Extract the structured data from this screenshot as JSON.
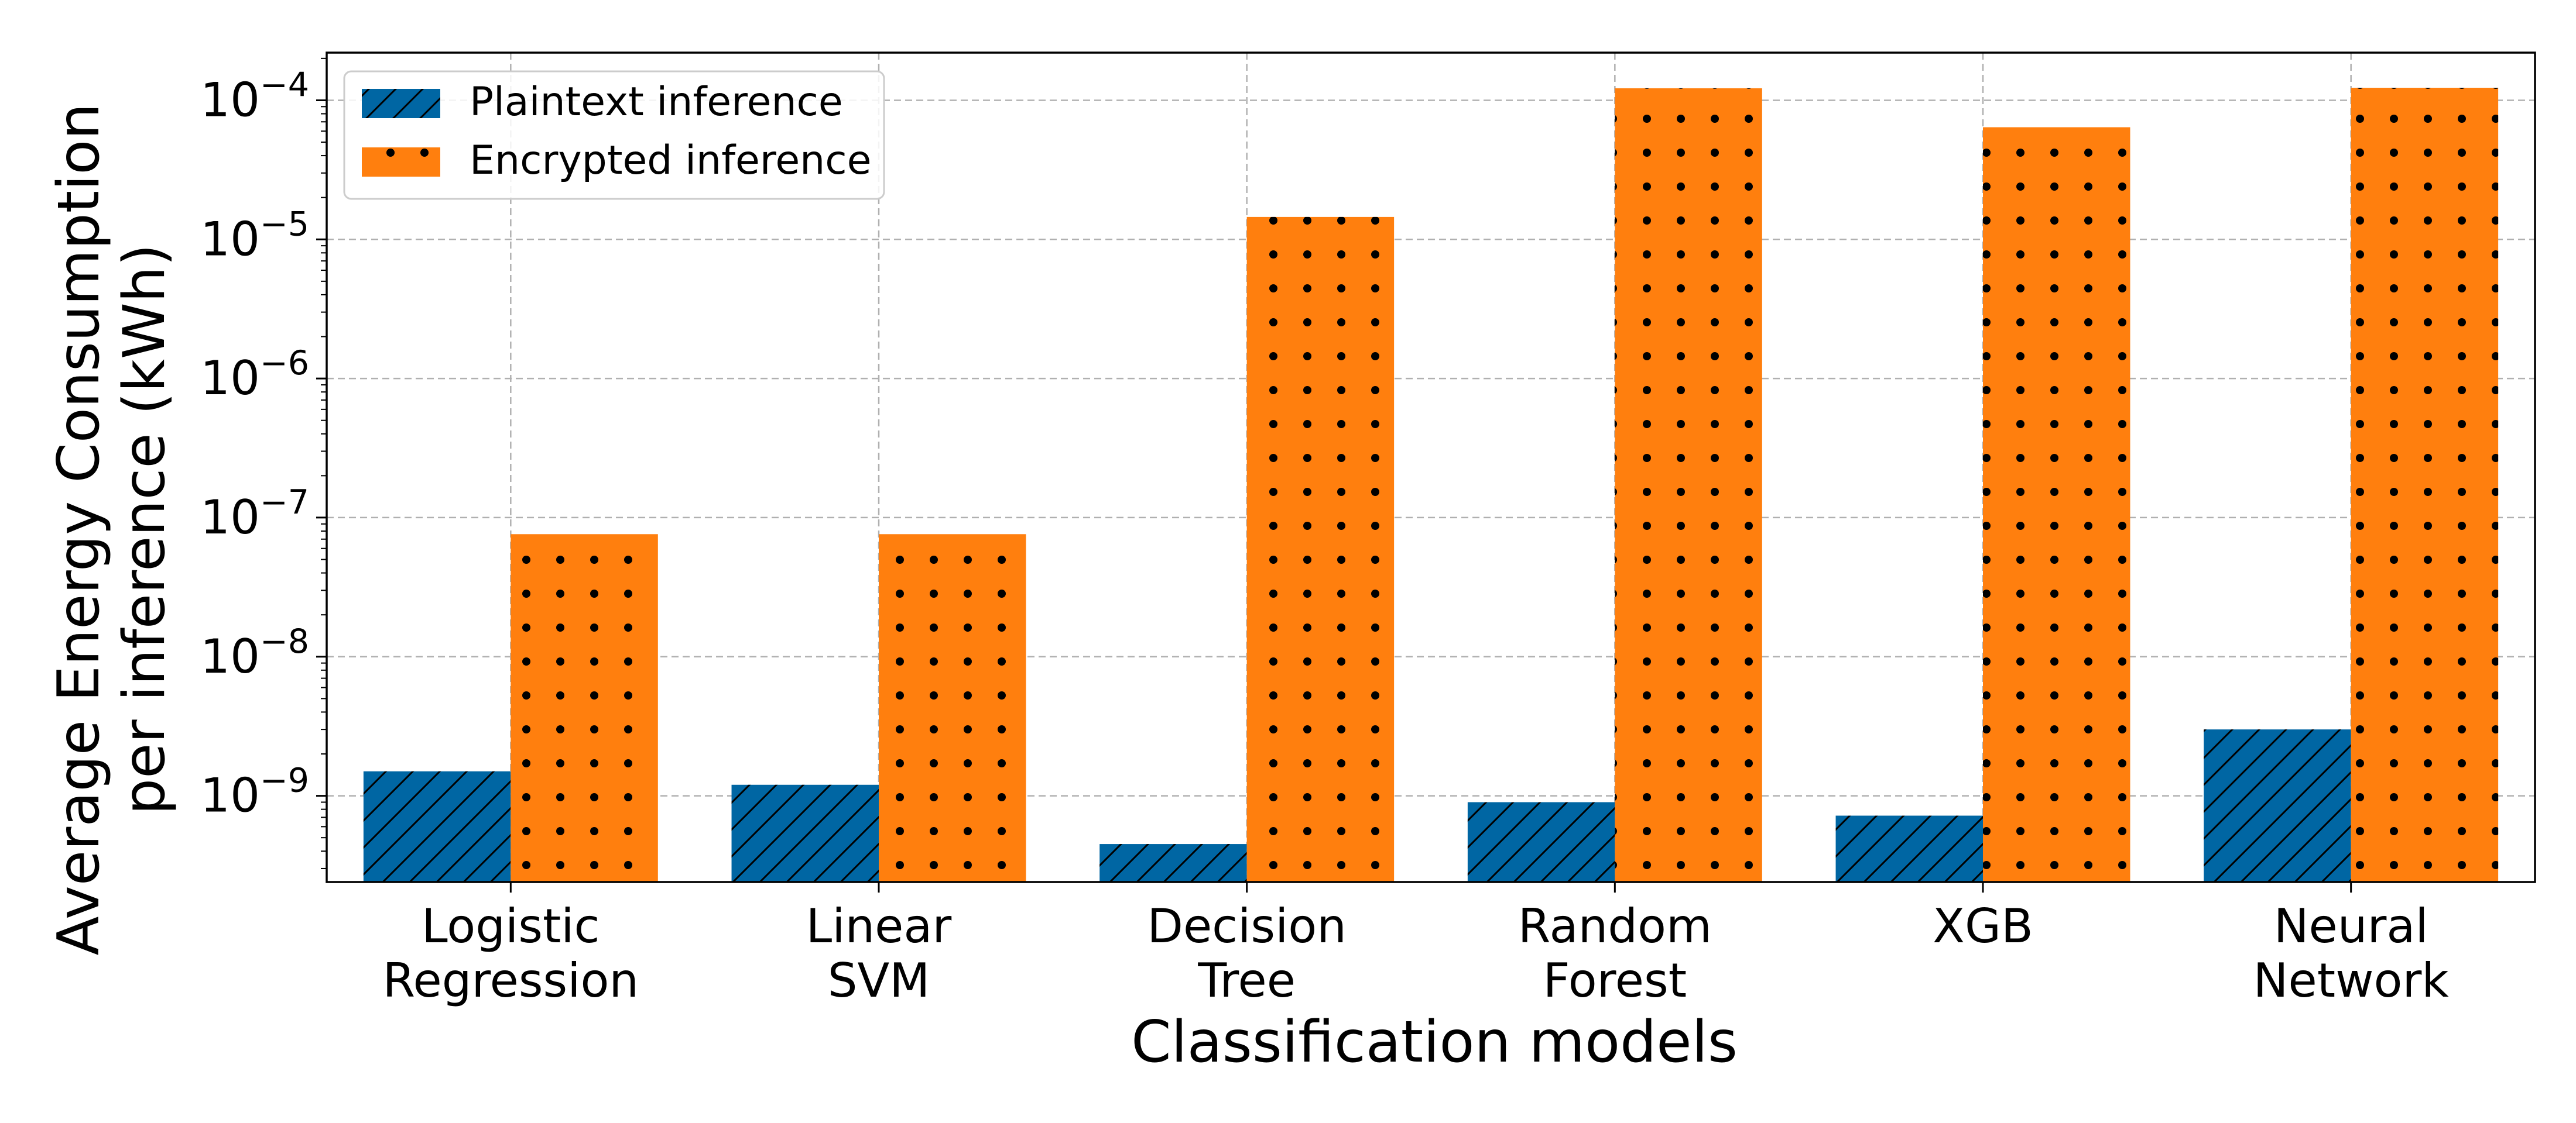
{
  "chart_data": {
    "type": "bar",
    "title": "",
    "xlabel": "Classification models",
    "ylabel_lines": [
      "Average Energy Consumption",
      "per inference (kWh)"
    ],
    "yscale": "log",
    "ylim": [
      2.4e-10,
      0.00022
    ],
    "yticks": [
      {
        "value": 1e-09,
        "base": "10",
        "exp": "−9"
      },
      {
        "value": 1e-08,
        "base": "10",
        "exp": "−8"
      },
      {
        "value": 1e-07,
        "base": "10",
        "exp": "−7"
      },
      {
        "value": 1e-06,
        "base": "10",
        "exp": "−6"
      },
      {
        "value": 1e-05,
        "base": "10",
        "exp": "−5"
      },
      {
        "value": 0.0001,
        "base": "10",
        "exp": "−4"
      }
    ],
    "grid": true,
    "legend_position": "top-left",
    "categories": [
      [
        "Logistic",
        "Regression"
      ],
      [
        "Linear",
        "SVM"
      ],
      [
        "Decision",
        "Tree"
      ],
      [
        "Random",
        "Forest"
      ],
      [
        "XGB"
      ],
      [
        "Neural",
        "Network"
      ]
    ],
    "series": [
      {
        "name": "Plaintext inference",
        "color": "#0066a3",
        "pattern": "hatch",
        "values": [
          1.5e-09,
          1.2e-09,
          4.5e-10,
          9e-10,
          7.2e-10,
          3e-09
        ]
      },
      {
        "name": "Encrypted inference",
        "color": "#ff7f0e",
        "pattern": "dots",
        "values": [
          7.6e-08,
          7.6e-08,
          1.45e-05,
          0.000122,
          6.4e-05,
          0.000123
        ]
      }
    ]
  }
}
